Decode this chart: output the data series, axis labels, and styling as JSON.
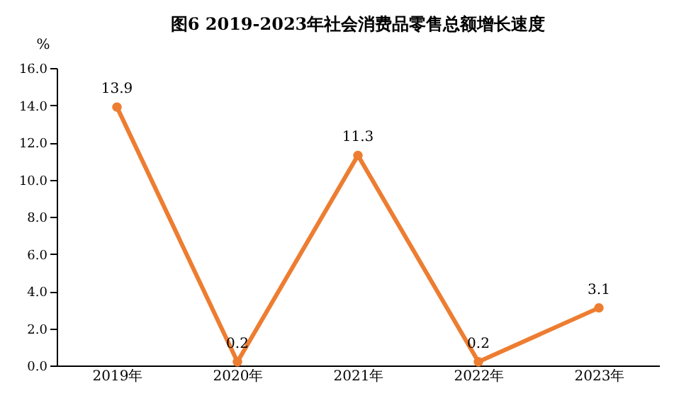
{
  "chart_data": {
    "type": "line",
    "title": "图6    2019-2023年社会消费品零售总额增长速度",
    "ylabel": "%",
    "categories": [
      "2019年",
      "2020年",
      "2021年",
      "2022年",
      "2023年"
    ],
    "series": [
      {
        "color": "#ed7d31",
        "values": [
          13.9,
          0.2,
          11.3,
          0.2,
          3.1
        ]
      }
    ],
    "ylim": [
      0,
      16
    ],
    "yticks": [
      {
        "value": 0,
        "label": "0.0"
      },
      {
        "value": 2,
        "label": "2.0"
      },
      {
        "value": 4,
        "label": "4.0"
      },
      {
        "value": 6,
        "label": "6.0"
      },
      {
        "value": 8,
        "label": "8.0"
      },
      {
        "value": 10,
        "label": "10.0"
      },
      {
        "value": 12,
        "label": "12.0"
      },
      {
        "value": 14,
        "label": "14.0"
      },
      {
        "value": 16,
        "label": "16.0"
      }
    ],
    "grid": false,
    "marker": "circle",
    "line_style": "solid",
    "data_labels": true
  }
}
